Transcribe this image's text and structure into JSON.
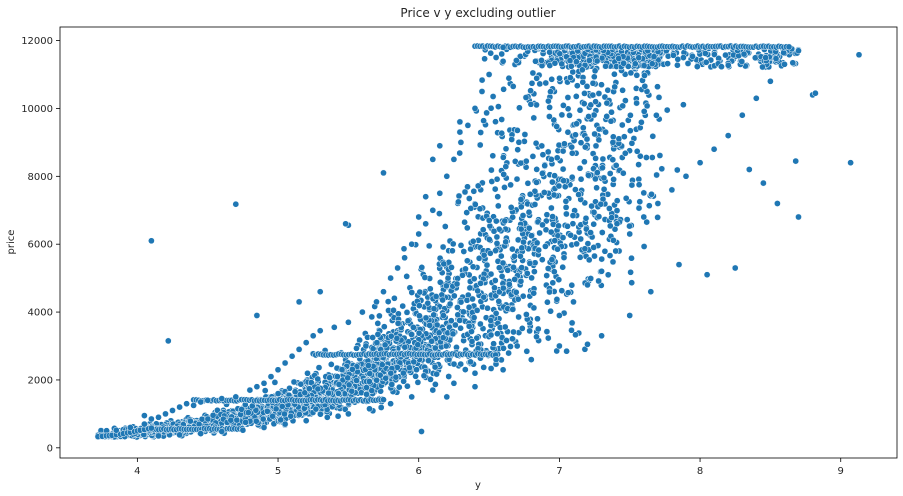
{
  "chart_data": {
    "type": "scatter",
    "title": "Price v y excluding outlier",
    "xlabel": "y",
    "ylabel": "price",
    "xlim": [
      3.45,
      9.4
    ],
    "ylim": [
      -300,
      12400
    ],
    "x_ticks": [
      4,
      5,
      6,
      7,
      8,
      9
    ],
    "y_ticks": [
      0,
      2000,
      4000,
      6000,
      8000,
      10000,
      12000
    ],
    "grid": false,
    "legend": "none",
    "marker_color": "#1f77b4",
    "marker_edge_color": "#ffffff",
    "series": [
      {
        "points": [
          [
            3.72,
            330
          ],
          [
            3.75,
            340
          ],
          [
            3.78,
            350
          ],
          [
            3.8,
            360
          ],
          [
            3.82,
            370
          ],
          [
            3.85,
            390
          ],
          [
            3.88,
            400
          ],
          [
            3.9,
            420
          ],
          [
            3.93,
            440
          ],
          [
            3.95,
            460
          ],
          [
            3.98,
            480
          ],
          [
            4.0,
            500
          ],
          [
            4.02,
            520
          ],
          [
            4.05,
            540
          ],
          [
            4.08,
            560
          ],
          [
            4.1,
            580
          ],
          [
            3.85,
            520
          ],
          [
            3.95,
            600
          ],
          [
            4.05,
            700
          ],
          [
            4.1,
            850
          ],
          [
            4.05,
            950
          ],
          [
            4.15,
            900
          ],
          [
            4.2,
            1000
          ],
          [
            4.25,
            1100
          ],
          [
            4.3,
            1200
          ],
          [
            4.35,
            1300
          ],
          [
            4.4,
            1250
          ],
          [
            4.45,
            1350
          ],
          [
            4.5,
            1400
          ],
          [
            4.6,
            1450
          ],
          [
            4.7,
            1500
          ],
          [
            4.8,
            1700
          ],
          [
            4.85,
            1800
          ],
          [
            4.9,
            1900
          ],
          [
            4.95,
            2100
          ],
          [
            5.0,
            2300
          ],
          [
            5.05,
            2500
          ],
          [
            5.1,
            2700
          ],
          [
            5.15,
            2900
          ],
          [
            5.2,
            3100
          ],
          [
            5.25,
            3300
          ],
          [
            5.3,
            3450
          ],
          [
            5.4,
            3550
          ],
          [
            5.5,
            3700
          ],
          [
            5.6,
            4000
          ],
          [
            5.7,
            4300
          ],
          [
            5.75,
            4600
          ],
          [
            5.8,
            5000
          ],
          [
            5.85,
            5300
          ],
          [
            5.9,
            5600
          ],
          [
            5.95,
            6000
          ],
          [
            6.0,
            6300
          ],
          [
            6.05,
            6600
          ],
          [
            6.1,
            7000
          ],
          [
            6.15,
            7500
          ],
          [
            6.2,
            8000
          ],
          [
            6.25,
            8500
          ],
          [
            6.3,
            9000
          ],
          [
            6.35,
            9500
          ],
          [
            6.4,
            10000
          ],
          [
            6.45,
            10500
          ],
          [
            6.5,
            11000
          ],
          [
            6.55,
            11500
          ],
          [
            6.6,
            11800
          ],
          [
            4.15,
            350
          ],
          [
            4.3,
            380
          ],
          [
            4.45,
            420
          ],
          [
            4.6,
            480
          ],
          [
            4.75,
            520
          ],
          [
            4.9,
            600
          ],
          [
            5.05,
            700
          ],
          [
            5.2,
            800
          ],
          [
            5.35,
            900
          ],
          [
            5.5,
            1000
          ],
          [
            5.65,
            1150
          ],
          [
            5.8,
            1300
          ],
          [
            5.95,
            1500
          ],
          [
            6.1,
            1700
          ],
          [
            6.25,
            1900
          ],
          [
            6.4,
            2200
          ],
          [
            6.55,
            2600
          ],
          [
            6.7,
            3000
          ],
          [
            6.85,
            3500
          ],
          [
            7.0,
            3900
          ],
          [
            7.1,
            4300
          ],
          [
            7.2,
            4800
          ],
          [
            7.3,
            5200
          ],
          [
            7.4,
            5800
          ],
          [
            7.5,
            6300
          ],
          [
            7.6,
            6800
          ],
          [
            7.7,
            7200
          ],
          [
            7.8,
            7600
          ],
          [
            7.9,
            8000
          ],
          [
            8.0,
            8400
          ],
          [
            8.1,
            8800
          ],
          [
            8.2,
            9200
          ],
          [
            8.3,
            9800
          ],
          [
            8.4,
            10300
          ],
          [
            8.5,
            10800
          ],
          [
            8.6,
            11300
          ],
          [
            8.7,
            11700
          ],
          [
            8.8,
            10400
          ],
          [
            8.82,
            10450
          ],
          [
            9.13,
            11580
          ],
          [
            9.07,
            8400
          ],
          [
            8.68,
            8450
          ],
          [
            8.7,
            6800
          ],
          [
            8.55,
            7200
          ],
          [
            8.45,
            7800
          ],
          [
            8.35,
            8200
          ],
          [
            8.25,
            5300
          ],
          [
            8.05,
            5100
          ],
          [
            7.85,
            5400
          ],
          [
            7.65,
            4600
          ],
          [
            7.5,
            3900
          ],
          [
            7.3,
            3300
          ],
          [
            7.2,
            3050
          ],
          [
            7.0,
            3000
          ],
          [
            6.8,
            2600
          ],
          [
            6.6,
            2300
          ],
          [
            6.4,
            1800
          ],
          [
            6.2,
            1500
          ],
          [
            6.02,
            480
          ],
          [
            4.1,
            6100
          ],
          [
            4.22,
            3150
          ],
          [
            4.7,
            7180
          ],
          [
            5.5,
            6560
          ],
          [
            5.48,
            6600
          ],
          [
            5.75,
            8100
          ],
          [
            4.85,
            3900
          ],
          [
            5.15,
            4300
          ],
          [
            5.3,
            4600
          ],
          [
            6.0,
            6800
          ],
          [
            6.05,
            7400
          ],
          [
            6.1,
            8500
          ],
          [
            6.15,
            8900
          ]
        ]
      }
    ],
    "shelf_rows": [
      {
        "price": 550,
        "x_range": [
          3.9,
          4.75
        ]
      },
      {
        "price": 1400,
        "x_range": [
          4.4,
          5.75
        ]
      },
      {
        "price": 2750,
        "x_range": [
          5.25,
          6.55
        ]
      },
      {
        "price": 11820,
        "x_range": [
          6.4,
          8.65
        ]
      }
    ]
  }
}
